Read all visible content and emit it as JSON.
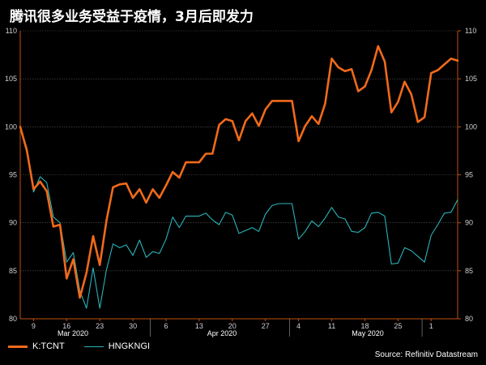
{
  "title": "腾讯很多业务受益于疫情，3月后即发力",
  "source": "Source: Refinitiv Datastream",
  "legend": {
    "tcnt_label": "K:TCNT",
    "hsi_label": "HNGKNGI"
  },
  "colors": {
    "tcnt": "#f06a1a",
    "hsi": "#2ab3b8",
    "axis": "#c05010",
    "grid": "#5a5a5a",
    "background": "#000000"
  },
  "chart_data": {
    "type": "line",
    "title": "腾讯很多业务受益于疫情，3月后即发力",
    "ylim": [
      80,
      110
    ],
    "y_ticks": [
      80,
      85,
      90,
      95,
      100,
      105,
      110
    ],
    "grid": true,
    "legend_position": "bottom-left",
    "x_tick_labels": [
      "9",
      "16",
      "23",
      "30",
      "6",
      "13",
      "20",
      "27",
      "4",
      "11",
      "18",
      "25",
      "1"
    ],
    "month_labels": [
      "Mar 2020",
      "Apr 2020",
      "May 2020"
    ],
    "series": [
      {
        "name": "K:TCNT",
        "values": [
          100,
          97.5,
          93.5,
          94.3,
          93.3,
          89.6,
          89.8,
          84.2,
          86.2,
          82.2,
          84.8,
          88.6,
          85.6,
          90.2,
          93.7,
          94.0,
          94.1,
          92.6,
          93.5,
          92.1,
          93.5,
          92.6,
          93.9,
          95.3,
          94.7,
          96.3,
          96.3,
          96.3,
          97.2,
          97.2,
          100.2,
          100.8,
          100.6,
          98.6,
          100.6,
          101.4,
          100.1,
          101.8,
          102.7,
          102.7,
          102.7,
          102.7,
          98.5,
          100.1,
          101.1,
          100.3,
          102.4,
          107.1,
          106.2,
          105.8,
          106.0,
          103.7,
          104.2,
          105.9,
          108.4,
          106.8,
          101.5,
          102.6,
          104.7,
          103.4,
          100.5,
          101.0,
          105.6,
          105.9,
          106.5,
          107.1,
          106.9
        ]
      },
      {
        "name": "HNGKNGI",
        "values": [
          100,
          97.8,
          93.2,
          94.8,
          94.2,
          90.6,
          90.0,
          85.9,
          86.9,
          82.9,
          81.1,
          85.3,
          81.1,
          85.1,
          87.8,
          87.4,
          87.7,
          86.6,
          88.2,
          86.4,
          87.0,
          86.8,
          88.3,
          90.6,
          89.5,
          90.7,
          90.7,
          90.7,
          91.0,
          90.3,
          89.8,
          91.1,
          90.8,
          88.9,
          89.2,
          89.5,
          89.1,
          90.9,
          91.8,
          92.0,
          92.0,
          92.0,
          88.3,
          89.1,
          90.2,
          89.6,
          90.5,
          91.6,
          90.6,
          90.4,
          89.1,
          89.0,
          89.5,
          91.0,
          91.1,
          90.7,
          85.7,
          85.8,
          87.4,
          87.1,
          86.5,
          85.9,
          88.7,
          89.8,
          91.0,
          91.1,
          92.4
        ]
      }
    ]
  }
}
